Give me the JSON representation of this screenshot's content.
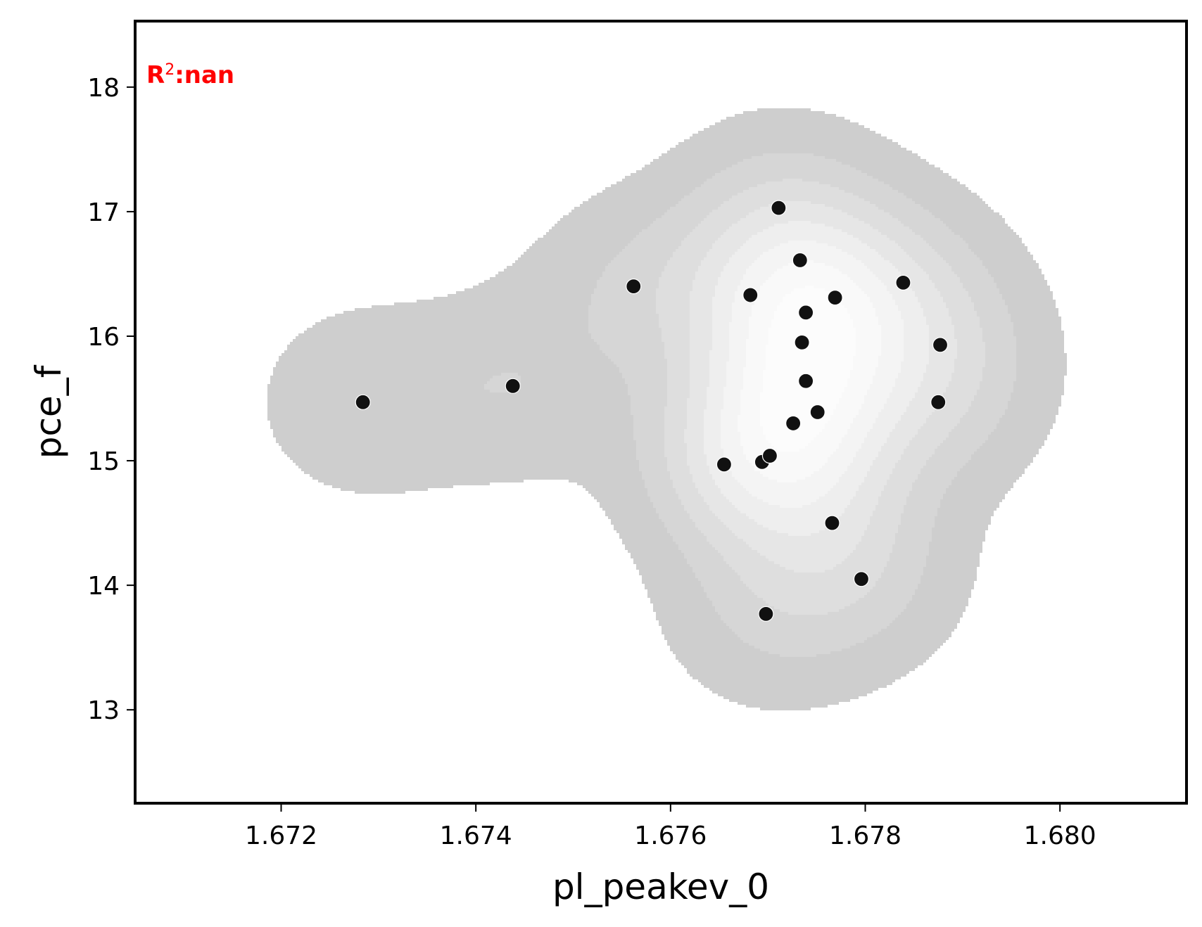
{
  "chart_data": {
    "type": "scatter",
    "xlabel": "pl_peakev_0",
    "ylabel": "pce_f",
    "xlim": [
      1.6705,
      1.6813
    ],
    "ylim": [
      12.25,
      18.53
    ],
    "xticks": [
      1.672,
      1.674,
      1.676,
      1.678,
      1.68
    ],
    "xtick_labels": [
      "1.672",
      "1.674",
      "1.676",
      "1.678",
      "1.680"
    ],
    "yticks": [
      13,
      14,
      15,
      16,
      17,
      18
    ],
    "ytick_labels": [
      "13",
      "14",
      "15",
      "16",
      "17",
      "18"
    ],
    "grid": false,
    "legend": "none",
    "annotation": {
      "prefix": "R",
      "superscript": "2",
      "suffix": ":nan",
      "color": "#ff0000",
      "position": "top-left"
    },
    "point_color": "#111111",
    "density_colors": [
      "#cecece",
      "#d6d6d6",
      "#dedede",
      "#e6e6e6",
      "#eeeeee",
      "#f4f4f4",
      "#f9f9f9",
      "#fcfcfc"
    ],
    "points": [
      {
        "x": 1.67284,
        "y": 15.47
      },
      {
        "x": 1.67438,
        "y": 15.6
      },
      {
        "x": 1.67562,
        "y": 16.4
      },
      {
        "x": 1.67655,
        "y": 14.97
      },
      {
        "x": 1.67682,
        "y": 16.33
      },
      {
        "x": 1.67694,
        "y": 14.99
      },
      {
        "x": 1.67702,
        "y": 15.04
      },
      {
        "x": 1.67698,
        "y": 13.77
      },
      {
        "x": 1.67711,
        "y": 17.03
      },
      {
        "x": 1.67726,
        "y": 15.3
      },
      {
        "x": 1.67733,
        "y": 16.61
      },
      {
        "x": 1.67735,
        "y": 15.95
      },
      {
        "x": 1.67739,
        "y": 16.19
      },
      {
        "x": 1.67739,
        "y": 15.64
      },
      {
        "x": 1.67751,
        "y": 15.39
      },
      {
        "x": 1.67766,
        "y": 14.5
      },
      {
        "x": 1.67769,
        "y": 16.31
      },
      {
        "x": 1.67796,
        "y": 14.05
      },
      {
        "x": 1.67839,
        "y": 16.43
      },
      {
        "x": 1.67875,
        "y": 15.47
      },
      {
        "x": 1.67877,
        "y": 15.93
      }
    ]
  }
}
